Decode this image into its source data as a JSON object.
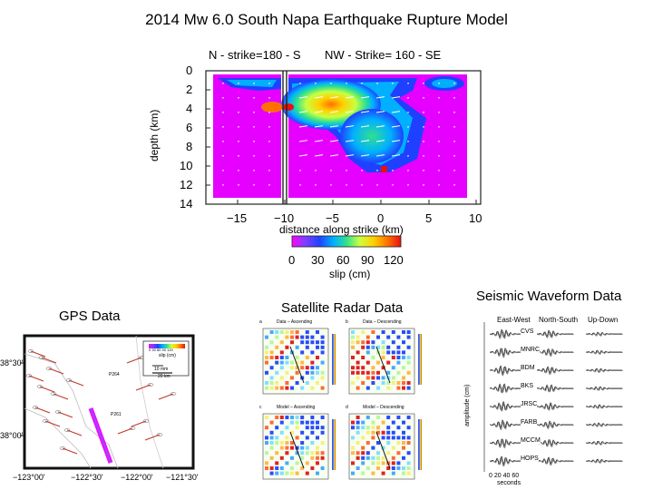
{
  "slide_title": "2014 Mw 6.0 South Napa Earthquake Rupture Model",
  "rupture": {
    "left_segment_label": "N - strike=180 - S",
    "right_segment_label": "NW - Strike= 160 - SE",
    "ylabel": "depth (km)",
    "xlabel": "distance along strike (km)",
    "y_ticks": [
      "0",
      "2",
      "4",
      "6",
      "8",
      "10",
      "12",
      "14"
    ],
    "x_ticks": [
      "−15",
      "−10",
      "−5",
      "0",
      "5",
      "10"
    ],
    "colorbar_ticks": [
      "0",
      "30",
      "60",
      "90",
      "120"
    ],
    "colorbar_label": "slip (cm)",
    "colorbar_colors": [
      "#ff00ff",
      "#7f3fff",
      "#2040ff",
      "#00b0ff",
      "#30e090",
      "#c8ff40",
      "#ffd000",
      "#ff7000",
      "#e81010"
    ]
  },
  "gps": {
    "title": "GPS Data",
    "y_ticks": [
      "38°30'",
      "38°00'"
    ],
    "x_ticks": [
      "−123°00'",
      "−122°30'",
      "−122°00'",
      "−121°30'"
    ],
    "station_labels": [
      "P264",
      "P261"
    ],
    "legend_ticks": [
      "0",
      "30",
      "60",
      "90",
      "120"
    ],
    "legend_slip": "slip (cm)",
    "legend_vec": "10 mm",
    "legend_scale": "20 km"
  },
  "radar": {
    "title": "Satellite Radar Data",
    "panels": [
      {
        "letter": "a",
        "title": "Data – Ascending"
      },
      {
        "letter": "b",
        "title": "Data – Descending"
      },
      {
        "letter": "c",
        "title": "Model – Ascending"
      },
      {
        "letter": "d",
        "title": "Model – Descending"
      }
    ]
  },
  "seismic": {
    "title": "Seismic Waveform Data",
    "columns": [
      "East-West",
      "North-South",
      "Up-Down"
    ],
    "stations": [
      "CVS",
      "MNRC",
      "BDM",
      "BKS",
      "JRSC",
      "FARB",
      "MCCM",
      "HOPS"
    ],
    "ylabel": "amplitude (cm)",
    "x_ticks": [
      "0",
      "20",
      "40",
      "60"
    ],
    "xlabel": "seconds"
  }
}
